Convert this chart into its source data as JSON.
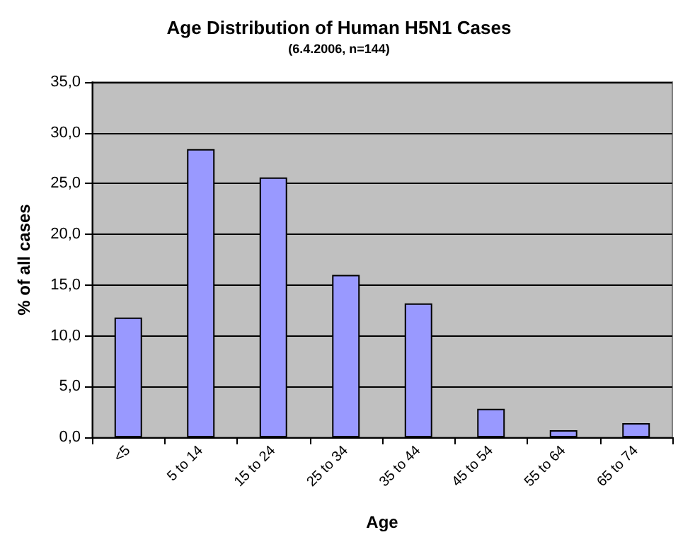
{
  "chart_data": {
    "type": "bar",
    "title": "Age Distribution of Human H5N1 Cases",
    "subtitle": "(6.4.2006, n=144)",
    "xlabel": "Age",
    "ylabel": "% of all cases",
    "categories": [
      "<5",
      "5 to 14",
      "15 to 24",
      "25 to 34",
      "35 to 44",
      "45 to 54",
      "55 to 64",
      "65 to 74"
    ],
    "values": [
      11.8,
      28.4,
      25.6,
      16.0,
      13.2,
      2.8,
      0.7,
      1.4
    ],
    "color": "#9999ff",
    "ylim": [
      0,
      35
    ],
    "yticks": [
      {
        "value": 0,
        "label": "0,0"
      },
      {
        "value": 5,
        "label": "5,0"
      },
      {
        "value": 10,
        "label": "10,0"
      },
      {
        "value": 15,
        "label": "15,0"
      },
      {
        "value": 20,
        "label": "20,0"
      },
      {
        "value": 25,
        "label": "25,0"
      },
      {
        "value": 30,
        "label": "30,0"
      },
      {
        "value": 35,
        "label": "35,0"
      }
    ],
    "grid": "y"
  }
}
